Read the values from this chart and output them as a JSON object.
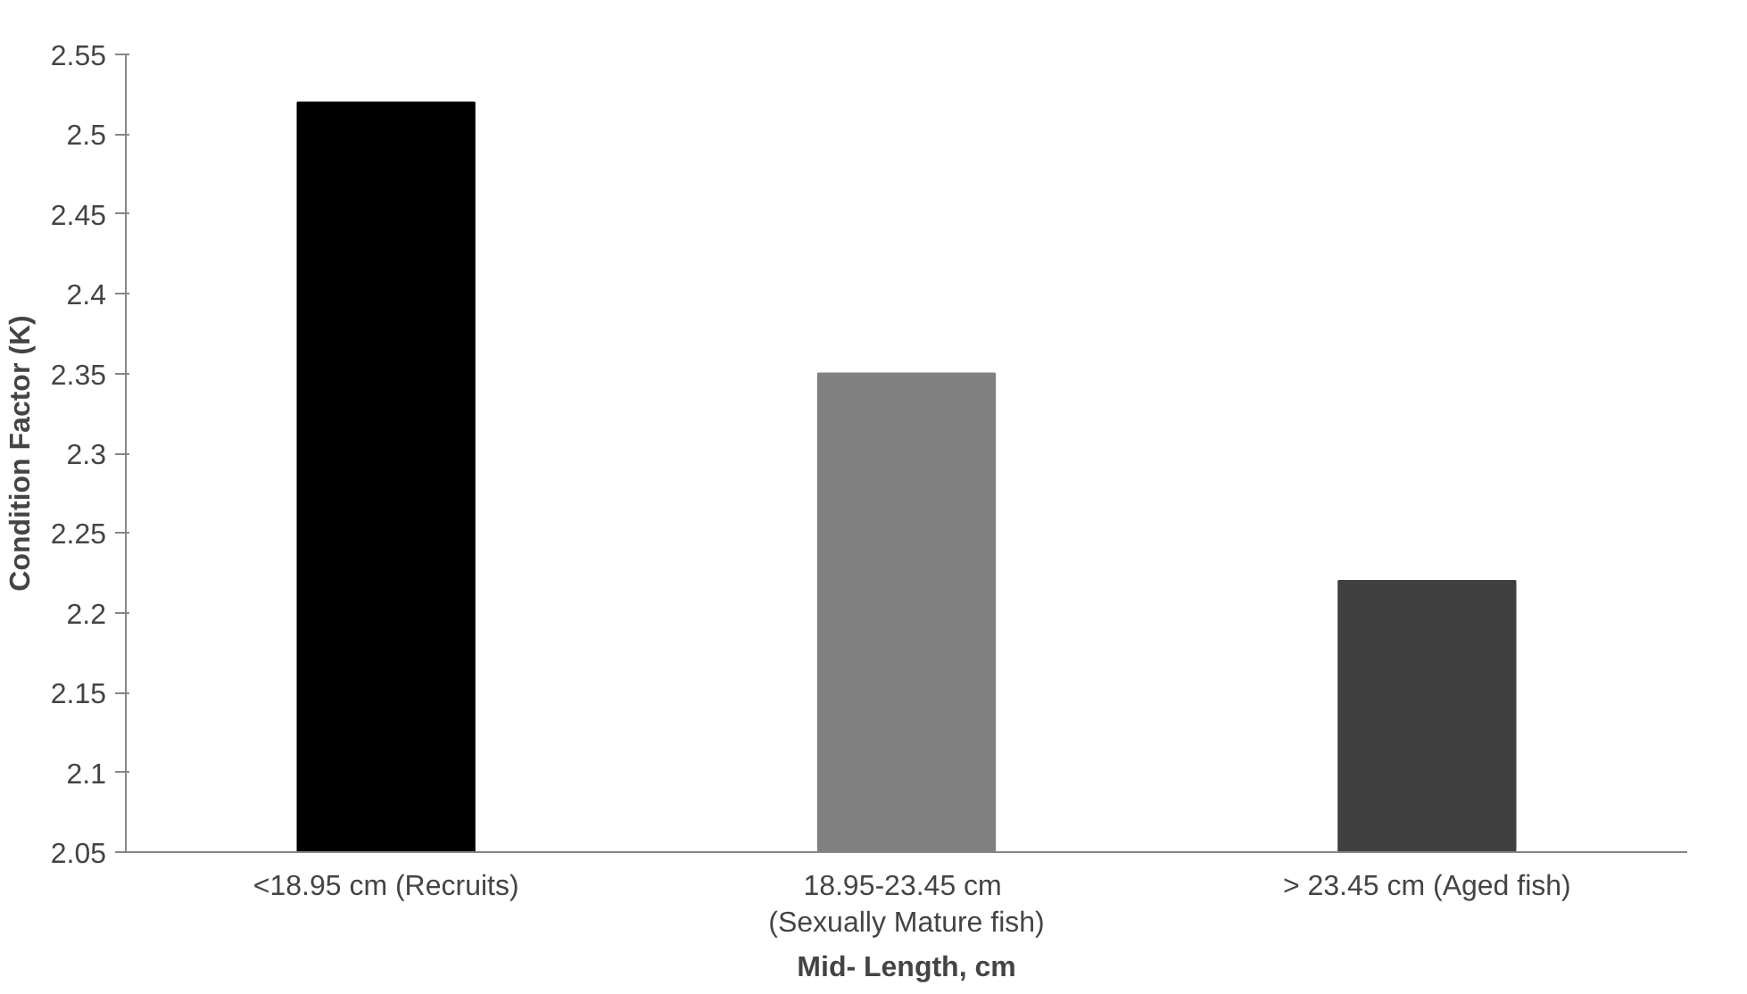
{
  "chart_data": {
    "type": "bar",
    "categories": [
      "<18.95 cm (Recruits)",
      "18.95-23.45  cm\n(Sexually Mature fish)",
      "> 23.45 cm (Aged fish)"
    ],
    "values": [
      2.52,
      2.35,
      2.22
    ],
    "colors": [
      "#000000",
      "#808080",
      "#404040"
    ],
    "xlabel": "Mid- Length, cm",
    "ylabel": "Condition Factor (K)",
    "ylim": [
      2.05,
      2.55
    ],
    "yticks": [
      2.05,
      {
        "value": 2.1,
        "label": "2.1"
      },
      2.15,
      {
        "value": 2.2,
        "label": "2.2"
      },
      2.25,
      {
        "value": 2.3,
        "label": "2.3"
      },
      2.35,
      {
        "value": 2.4,
        "label": "2.4"
      },
      2.45,
      {
        "value": 2.5,
        "label": "2.5"
      },
      2.55
    ],
    "grid": false
  }
}
